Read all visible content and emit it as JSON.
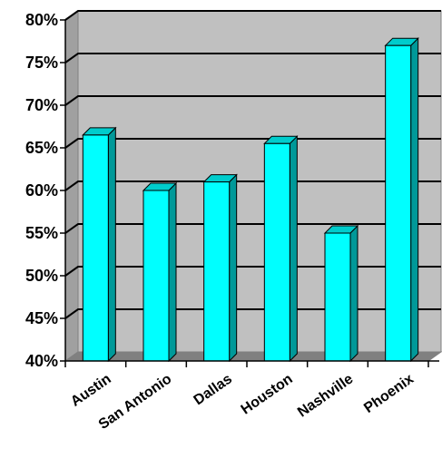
{
  "chart_data": {
    "type": "bar",
    "style": "3d-column",
    "categories": [
      "Austin",
      "San Antonio",
      "Dallas",
      "Houston",
      "Nashville",
      "Phoenix"
    ],
    "values": [
      66.5,
      60,
      61,
      65.5,
      55,
      77
    ],
    "ylim": [
      40,
      80
    ],
    "yticks": [
      40,
      45,
      50,
      55,
      60,
      65,
      70,
      75,
      80
    ],
    "ytick_labels": [
      "40%",
      "45%",
      "50%",
      "55%",
      "60%",
      "65%",
      "70%",
      "75%",
      "80%"
    ],
    "title": "",
    "xlabel": "",
    "ylabel": "",
    "grid": true,
    "legend": "none",
    "colors": {
      "bar_front": "#00ffff",
      "bar_side": "#009999",
      "bar_top": "#00cccc",
      "plot_back_wall": "#c0c0c0",
      "plot_floor": "#808080",
      "plot_side_wall": "#a0a0a0",
      "gridline": "#000000",
      "axis": "#000000"
    }
  }
}
